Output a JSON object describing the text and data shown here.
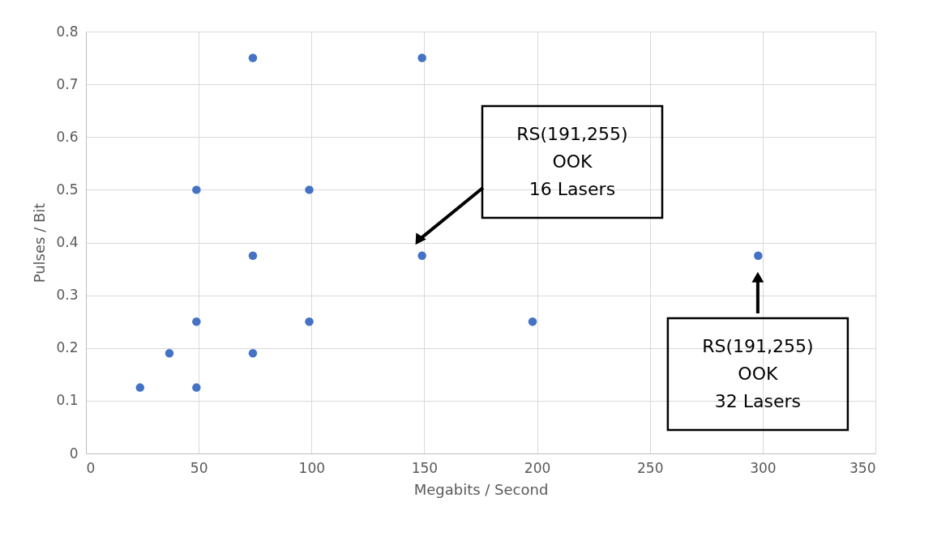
{
  "chart_data": {
    "type": "scatter",
    "xlabel": "Megabits / Second",
    "ylabel": "Pulses / Bit",
    "x": [
      24,
      37,
      49,
      49,
      49,
      74,
      74,
      74,
      99,
      99,
      149,
      149,
      198,
      298
    ],
    "series": [
      {
        "color": "#4472c4",
        "values": [
          0.125,
          0.19,
          0.125,
          0.25,
          0.5,
          0.19,
          0.375,
          0.75,
          0.25,
          0.5,
          0.375,
          0.75,
          0.25,
          0.375
        ]
      }
    ],
    "xlim": [
      0,
      350
    ],
    "ylim": [
      0,
      0.8
    ],
    "xticks": [
      0,
      50,
      100,
      150,
      200,
      250,
      300,
      350
    ],
    "yticks": [
      0,
      0.1,
      0.2,
      0.3,
      0.4,
      0.5,
      0.6,
      0.7,
      0.8
    ],
    "grid": true,
    "marker": "circle",
    "annotations": [
      "RS(191,255)\nOOK\n16 Lasers",
      "RS(191,255)\nOOK\n32 Lasers"
    ]
  }
}
